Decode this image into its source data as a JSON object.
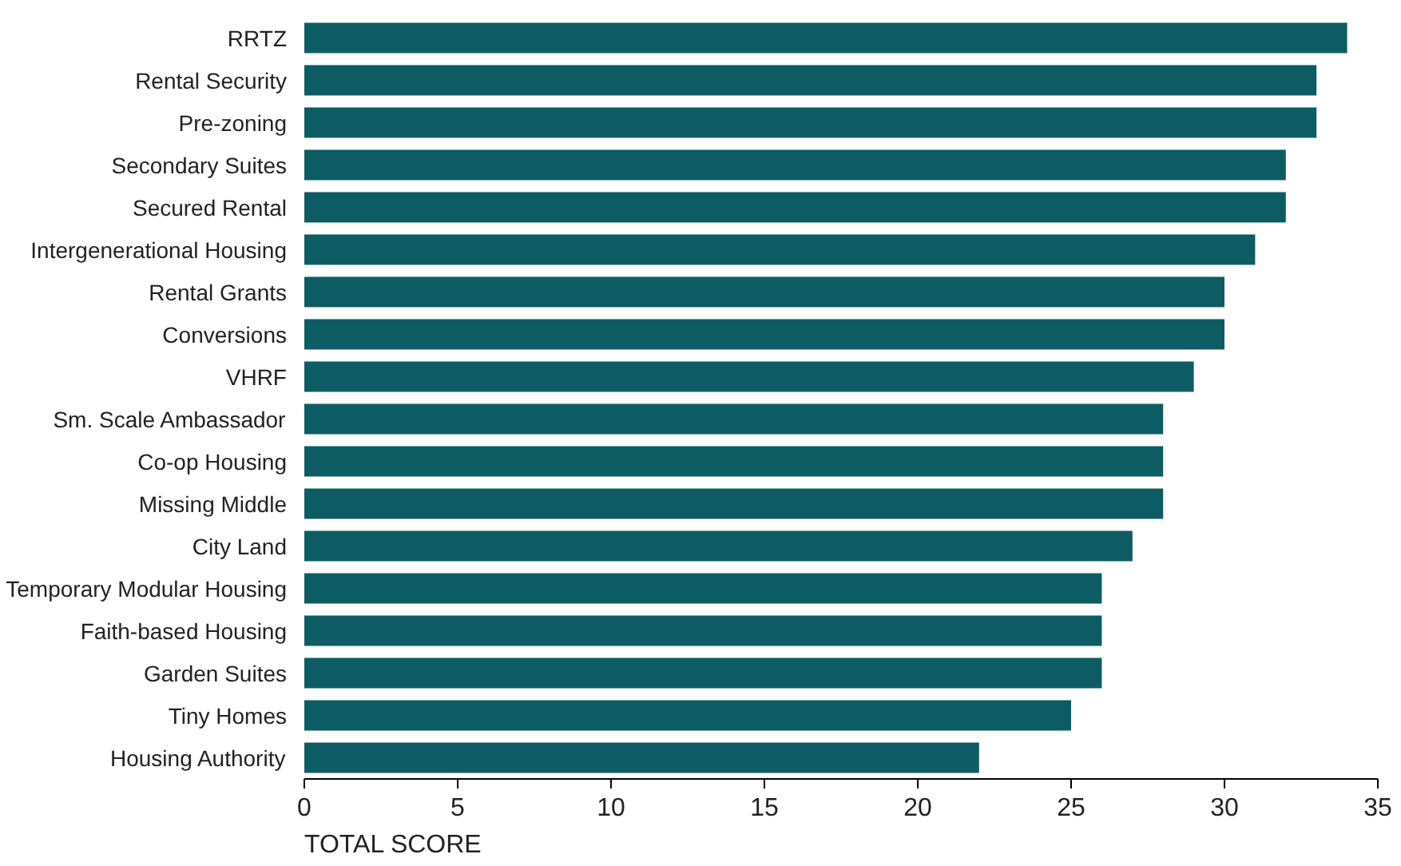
{
  "chart_data": {
    "type": "bar",
    "orientation": "horizontal",
    "xlabel": "TOTAL SCORE",
    "categories": [
      "RRTZ",
      "Rental Security",
      "Pre-zoning",
      "Secondary Suites",
      "Secured Rental",
      "Intergenerational Housing",
      "Rental Grants",
      "Conversions",
      "VHRF",
      "Sm. Scale Ambassador",
      "Co-op Housing",
      "Missing Middle",
      "City Land",
      "Temporary Modular Housing",
      "Faith-based Housing",
      "Garden Suites",
      "Tiny Homes",
      "Housing Authority"
    ],
    "values": [
      34,
      33,
      33,
      32,
      32,
      31,
      30,
      30,
      29,
      28,
      28,
      28,
      27,
      26,
      26,
      26,
      25,
      22
    ],
    "color": "#0d5c63",
    "xlim": [
      0,
      35
    ],
    "xticks": [
      0,
      5,
      10,
      15,
      20,
      25,
      30,
      35
    ],
    "grid": false
  }
}
